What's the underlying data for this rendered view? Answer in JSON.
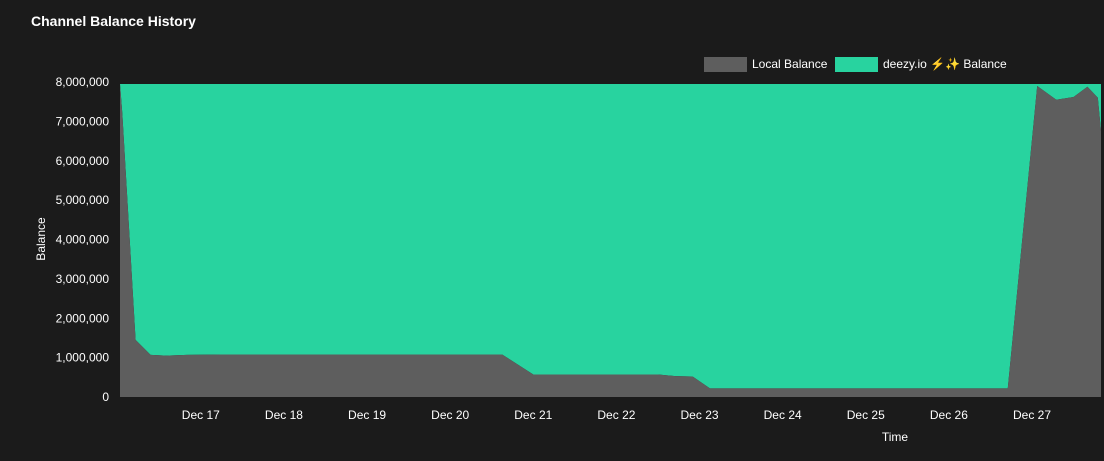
{
  "panel": {
    "title": "Channel Balance History"
  },
  "colors": {
    "background": "#1b1b1b",
    "local": "#5e5e5e",
    "remote": "#28d39f"
  },
  "chart_data": {
    "type": "area",
    "stacked": true,
    "title": "Channel Balance History",
    "xlabel": "Time",
    "ylabel": "Balance",
    "ylim": [
      0,
      8000000
    ],
    "xlim": [
      "2023-12-16T00:40",
      "2023-12-27T19:55"
    ],
    "grid": false,
    "legend_position": "top-right",
    "y_ticks": [
      {
        "value": 0,
        "label": "0"
      },
      {
        "value": 1000000,
        "label": "1,000,000"
      },
      {
        "value": 2000000,
        "label": "2,000,000"
      },
      {
        "value": 3000000,
        "label": "3,000,000"
      },
      {
        "value": 4000000,
        "label": "4,000,000"
      },
      {
        "value": 5000000,
        "label": "5,000,000"
      },
      {
        "value": 6000000,
        "label": "6,000,000"
      },
      {
        "value": 7000000,
        "label": "7,000,000"
      },
      {
        "value": 8000000,
        "label": "8,000,000"
      }
    ],
    "x_ticks": [
      {
        "value": "2023-12-17T00:00",
        "label": "Dec 17"
      },
      {
        "value": "2023-12-18T00:00",
        "label": "Dec 18"
      },
      {
        "value": "2023-12-19T00:00",
        "label": "Dec 19"
      },
      {
        "value": "2023-12-20T00:00",
        "label": "Dec 20"
      },
      {
        "value": "2023-12-21T00:00",
        "label": "Dec 21"
      },
      {
        "value": "2023-12-22T00:00",
        "label": "Dec 22"
      },
      {
        "value": "2023-12-23T00:00",
        "label": "Dec 23"
      },
      {
        "value": "2023-12-24T00:00",
        "label": "Dec 24"
      },
      {
        "value": "2023-12-25T00:00",
        "label": "Dec 25"
      },
      {
        "value": "2023-12-26T00:00",
        "label": "Dec 26"
      },
      {
        "value": "2023-12-27T00:00",
        "label": "Dec 27"
      }
    ],
    "x": [
      "2023-12-16T00:40",
      "2023-12-16T01:20",
      "2023-12-16T05:10",
      "2023-12-16T09:30",
      "2023-12-16T14:00",
      "2023-12-16T20:00",
      "2023-12-17T06:00",
      "2023-12-18T06:00",
      "2023-12-19T06:00",
      "2023-12-20T06:00",
      "2023-12-20T10:00",
      "2023-12-20T15:00",
      "2023-12-21T00:00",
      "2023-12-22T00:00",
      "2023-12-22T12:00",
      "2023-12-22T17:00",
      "2023-12-22T22:00",
      "2023-12-23T03:00",
      "2023-12-24T00:00",
      "2023-12-25T00:00",
      "2023-12-26T00:00",
      "2023-12-26T17:00",
      "2023-12-27T01:30",
      "2023-12-27T07:00",
      "2023-12-27T12:00",
      "2023-12-27T16:00",
      "2023-12-27T19:00",
      "2023-12-27T19:55"
    ],
    "series": [
      {
        "name": "Local Balance",
        "color": "#5e5e5e",
        "values": [
          7950000,
          7200000,
          1450000,
          1070000,
          1050000,
          1070000,
          1080000,
          1080000,
          1080000,
          1080000,
          1080000,
          1080000,
          570000,
          570000,
          570000,
          530000,
          520000,
          220000,
          220000,
          220000,
          220000,
          220000,
          7900000,
          7550000,
          7620000,
          7880000,
          7600000,
          6750000
        ]
      },
      {
        "name": "deezy.io ⚡✨ Balance",
        "color": "#28d39f",
        "values": [
          0,
          750000,
          6500000,
          6880000,
          6900000,
          6880000,
          6870000,
          6870000,
          6870000,
          6870000,
          6870000,
          6870000,
          7380000,
          7380000,
          7380000,
          7420000,
          7430000,
          7730000,
          7730000,
          7730000,
          7730000,
          7730000,
          50000,
          400000,
          330000,
          70000,
          350000,
          1200000
        ]
      }
    ]
  }
}
